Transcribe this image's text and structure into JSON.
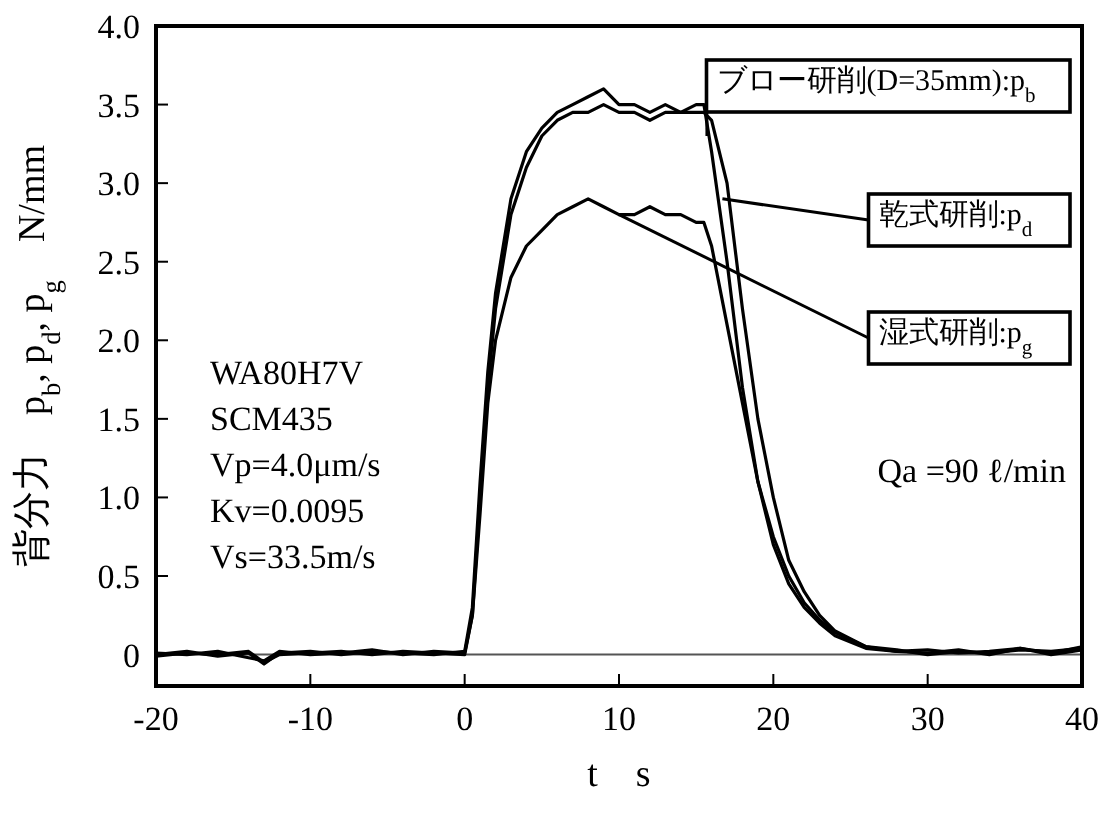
{
  "chart_data": {
    "type": "line",
    "xlabel": "t　s",
    "ylabel": "背分力　p$_{b}$, p$_{d}$, p$_{g}$　N/mm",
    "xlim": [
      -20,
      40
    ],
    "xticks": [
      -20,
      -10,
      0,
      10,
      20,
      30,
      40
    ],
    "ylim": [
      -0.2,
      4.0
    ],
    "yticks": [
      0,
      {
        "value": 0.5,
        "label": "0.5"
      },
      {
        "value": 1,
        "label": "1.0"
      },
      {
        "value": 1.5,
        "label": "1.5"
      },
      {
        "value": 2,
        "label": "2.0"
      },
      {
        "value": 2.5,
        "label": "2.5"
      },
      {
        "value": 3,
        "label": "3.0"
      },
      {
        "value": 3.5,
        "label": "3.5"
      },
      {
        "value": 4,
        "label": "4.0"
      }
    ],
    "grid": false,
    "marker": "none",
    "line_style": "solid",
    "ref_lines": [
      {
        "axis": "y",
        "value": 0,
        "color": "#555555"
      }
    ],
    "series": [
      {
        "color": "#000000",
        "x": [
          -20,
          -18,
          -16,
          -14,
          -13,
          -12,
          -10,
          -8,
          -6,
          -4,
          -2,
          0,
          0.5,
          1,
          1.5,
          2,
          3,
          4,
          5,
          6,
          7,
          8,
          9,
          10,
          11,
          12,
          13,
          14,
          15,
          15.5,
          16,
          17,
          18,
          19,
          20,
          21,
          22,
          23,
          24,
          26,
          28,
          30,
          32,
          34,
          36,
          38,
          40
        ],
        "values": [
          0,
          0.02,
          -0.01,
          0.01,
          -0.06,
          0.01,
          0.02,
          0,
          0.02,
          0.01,
          0,
          0.02,
          0.3,
          1.1,
          1.8,
          2.3,
          2.9,
          3.2,
          3.35,
          3.45,
          3.5,
          3.55,
          3.6,
          3.5,
          3.5,
          3.45,
          3.5,
          3.45,
          3.5,
          3.5,
          3.2,
          2.5,
          1.7,
          1.1,
          0.7,
          0.45,
          0.3,
          0.2,
          0.12,
          0.04,
          0.02,
          0.01,
          0.03,
          0,
          0.04,
          0.01,
          0.05
        ]
      },
      {
        "color": "#000000",
        "x": [
          -20,
          -18,
          -16,
          -14,
          -13,
          -12,
          -10,
          -8,
          -6,
          -4,
          -2,
          0,
          0.5,
          1,
          1.5,
          2,
          3,
          4,
          5,
          6,
          7,
          8,
          9,
          10,
          11,
          12,
          13,
          14,
          15,
          15.5,
          16,
          17,
          18,
          19,
          20,
          21,
          22,
          23,
          24,
          26,
          28,
          30,
          32,
          34,
          36,
          38,
          40
        ],
        "values": [
          0.01,
          0,
          0.02,
          -0.02,
          -0.04,
          0.02,
          0,
          0.01,
          0.03,
          0,
          0.02,
          0.01,
          0.25,
          1.0,
          1.7,
          2.2,
          2.8,
          3.1,
          3.3,
          3.4,
          3.45,
          3.45,
          3.5,
          3.45,
          3.45,
          3.4,
          3.45,
          3.45,
          3.45,
          3.45,
          3.4,
          3.0,
          2.2,
          1.5,
          1.0,
          0.6,
          0.4,
          0.25,
          0.15,
          0.05,
          0.03,
          0,
          0.02,
          0.01,
          0.03,
          0.02,
          0.04
        ]
      },
      {
        "color": "#000000",
        "x": [
          -20,
          -18,
          -16,
          -14,
          -13,
          -12,
          -10,
          -8,
          -6,
          -4,
          -2,
          0,
          0.5,
          1,
          1.5,
          2,
          3,
          4,
          5,
          6,
          7,
          8,
          9,
          10,
          11,
          12,
          13,
          14,
          15,
          15.5,
          16,
          17,
          18,
          19,
          20,
          21,
          22,
          23,
          24,
          26,
          28,
          30,
          32,
          34,
          36,
          38,
          40
        ],
        "values": [
          -0.01,
          0.01,
          0,
          0.02,
          -0.05,
          0,
          0.01,
          0.02,
          0,
          0.02,
          0.01,
          0,
          0.25,
          0.9,
          1.6,
          2.0,
          2.4,
          2.6,
          2.7,
          2.8,
          2.85,
          2.9,
          2.85,
          2.8,
          2.8,
          2.85,
          2.8,
          2.8,
          2.75,
          2.75,
          2.6,
          2.1,
          1.6,
          1.1,
          0.75,
          0.5,
          0.33,
          0.22,
          0.14,
          0.05,
          0.02,
          0.03,
          0.01,
          0.02,
          0.04,
          0,
          0.03
        ]
      }
    ],
    "annotations": [
      {
        "text": "ブロー研削(D=35mm):p$_{b}$",
        "x": 15.7,
        "y": 3.3
      },
      {
        "text": "乾式研削:p$_{d}$",
        "x": 16.7,
        "y": 2.9
      },
      {
        "text": "湿式研削:p$_{g}$",
        "x": 10,
        "y": 2.8
      },
      "WA80H7V",
      "SCM435",
      "Vp=4.0μm/s",
      "Kv=0.0095",
      "Vs=33.5m/s",
      "Qa =90 ℓ/min"
    ]
  }
}
